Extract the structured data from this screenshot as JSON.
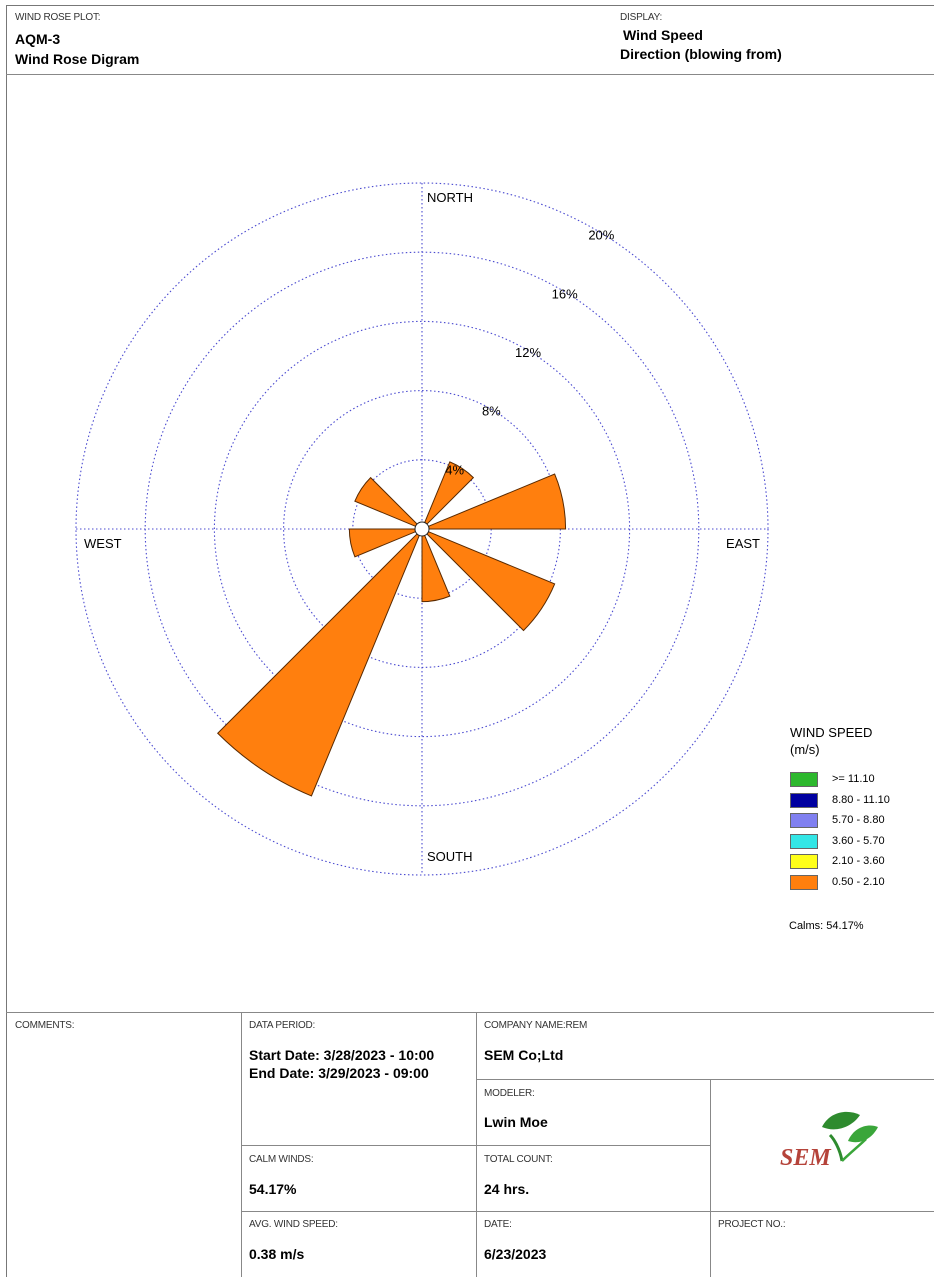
{
  "header": {
    "plot_label": "WIND ROSE PLOT:",
    "station": "AQM-3",
    "plot_title": "Wind Rose Digram",
    "display_label": "DISPLAY:",
    "display_value": "Wind Speed",
    "display_sub": "Direction (blowing from)"
  },
  "chart_data": {
    "type": "wind-rose",
    "direction_labels": [
      "NORTH",
      "EAST",
      "SOUTH",
      "WEST"
    ],
    "ring_values": [
      4,
      8,
      12,
      16,
      20
    ],
    "ring_labels": [
      "4%",
      "8%",
      "12%",
      "16%",
      "20%"
    ],
    "sectors_deg": 16,
    "series": [
      {
        "name": "0.50 - 2.10",
        "color": "#ff7f0e",
        "petals": [
          {
            "direction_deg": 33.75,
            "percent": 4.2
          },
          {
            "direction_deg": 78.75,
            "percent": 8.3
          },
          {
            "direction_deg": 123.75,
            "percent": 8.3
          },
          {
            "direction_deg": 168.75,
            "percent": 4.2
          },
          {
            "direction_deg": 213.75,
            "percent": 16.7
          },
          {
            "direction_deg": 258.75,
            "percent": 4.2
          },
          {
            "direction_deg": 303.75,
            "percent": 4.2
          }
        ]
      }
    ]
  },
  "legend": {
    "title_line1": "WIND SPEED",
    "title_line2": "(m/s)",
    "items": [
      {
        "label": ">= 11.10",
        "color": "#2db82d"
      },
      {
        "label": "8.80 - 11.10",
        "color": "#0000a0"
      },
      {
        "label": "5.70 - 8.80",
        "color": "#8080f0"
      },
      {
        "label": "3.60 - 5.70",
        "color": "#33e6e6"
      },
      {
        "label": "2.10 - 3.60",
        "color": "#ffff1a"
      },
      {
        "label": "0.50 - 2.10",
        "color": "#ff7f0e"
      }
    ],
    "calms": "Calms: 54.17%"
  },
  "footer": {
    "comments_label": "COMMENTS:",
    "data_period_label": "DATA PERIOD:",
    "start_date": "Start Date: 3/28/2023 - 10:00",
    "end_date": "End Date: 3/29/2023 - 09:00",
    "company_label": "COMPANY NAME:REM",
    "company_value": "SEM Co;Ltd",
    "modeler_label": "MODELER:",
    "modeler_value": "Lwin Moe",
    "logo_text": "SEM",
    "calm_label": "CALM WINDS:",
    "calm_value": "54.17%",
    "total_label": "TOTAL COUNT:",
    "total_value": "24 hrs.",
    "avg_label": "AVG. WIND SPEED:",
    "avg_value": "0.38 m/s",
    "date_label": "DATE:",
    "date_value": "6/23/2023",
    "project_label": "PROJECT NO.:"
  }
}
